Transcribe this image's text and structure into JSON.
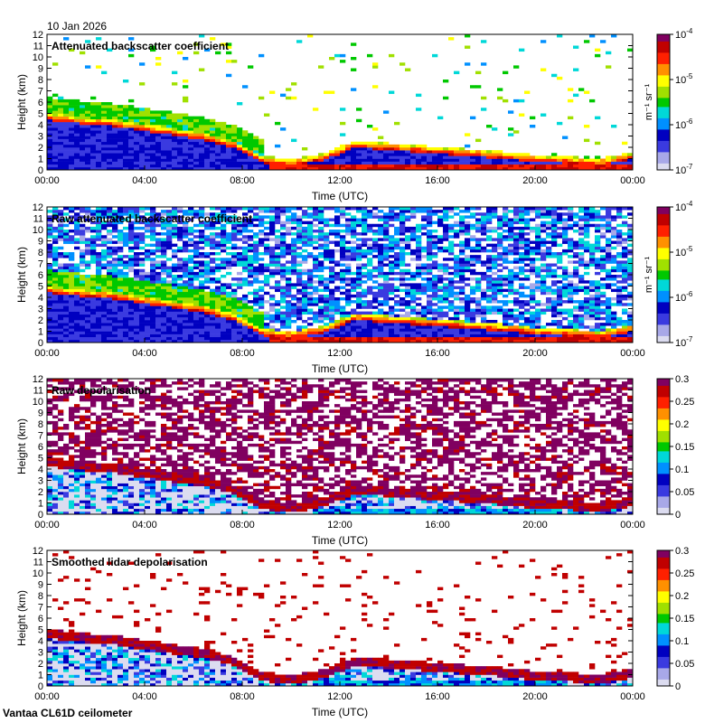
{
  "date_label": "10 Jan 2026",
  "footer_label": "Vantaa CL61D ceilometer",
  "chart_data": [
    {
      "type": "heatmap",
      "title": "Attenuated backscatter coefficient",
      "xlabel": "Time (UTC)",
      "ylabel": "Height (km)",
      "x_ticks": [
        "00:00",
        "04:00",
        "08:00",
        "12:00",
        "16:00",
        "20:00",
        "00:00"
      ],
      "y_ticks": [
        "0",
        "1",
        "2",
        "3",
        "4",
        "5",
        "6",
        "7",
        "8",
        "9",
        "10",
        "11",
        "12"
      ],
      "ylim": [
        0,
        12
      ],
      "colorbar": {
        "scale": "log",
        "range": [
          1e-07,
          0.0001
        ],
        "ticks": [
          {
            "base": "10",
            "exp": "-4"
          },
          {
            "base": "10",
            "exp": "-5"
          },
          {
            "base": "10",
            "exp": "-6"
          },
          {
            "base": "10",
            "exp": "-7"
          }
        ],
        "unit": "m⁻¹ sr⁻¹"
      },
      "features": {
        "cloud_top_km": [
          5.0,
          4.7,
          4.5,
          4.1,
          3.7,
          3.3,
          2.6,
          1.2,
          1.0,
          1.5,
          2.6,
          2.4,
          2.2,
          2.0,
          1.8,
          1.6,
          1.3,
          1.2,
          1.0,
          1.5
        ],
        "noise": "low"
      }
    },
    {
      "type": "heatmap",
      "title": "Raw attenuated backscatter coefficient",
      "xlabel": "Time (UTC)",
      "ylabel": "Height (km)",
      "x_ticks": [
        "00:00",
        "04:00",
        "08:00",
        "12:00",
        "16:00",
        "20:00",
        "00:00"
      ],
      "y_ticks": [
        "0",
        "1",
        "2",
        "3",
        "4",
        "5",
        "6",
        "7",
        "8",
        "9",
        "10",
        "11",
        "12"
      ],
      "ylim": [
        0,
        12
      ],
      "colorbar": {
        "scale": "log",
        "range": [
          1e-07,
          0.0001
        ],
        "ticks": [
          {
            "base": "10",
            "exp": "-4"
          },
          {
            "base": "10",
            "exp": "-5"
          },
          {
            "base": "10",
            "exp": "-6"
          },
          {
            "base": "10",
            "exp": "-7"
          }
        ],
        "unit": "m⁻¹ sr⁻¹"
      },
      "features": {
        "cloud_top_km": [
          5.0,
          4.7,
          4.5,
          4.1,
          3.7,
          3.3,
          2.6,
          1.2,
          1.0,
          1.5,
          2.6,
          2.4,
          2.2,
          2.0,
          1.8,
          1.6,
          1.3,
          1.2,
          1.0,
          1.5
        ],
        "noise": "high"
      }
    },
    {
      "type": "heatmap",
      "title": "Raw depolarisation",
      "xlabel": "Time (UTC)",
      "ylabel": "Height (km)",
      "x_ticks": [
        "00:00",
        "04:00",
        "08:00",
        "12:00",
        "16:00",
        "20:00",
        "00:00"
      ],
      "y_ticks": [
        "0",
        "1",
        "2",
        "3",
        "4",
        "5",
        "6",
        "7",
        "8",
        "9",
        "10",
        "11",
        "12"
      ],
      "ylim": [
        0,
        12
      ],
      "colorbar": {
        "scale": "linear",
        "range": [
          0,
          0.3
        ],
        "ticks": [
          "0.3",
          "0.25",
          "0.2",
          "0.15",
          "0.1",
          "0.05",
          "0"
        ]
      },
      "features": {
        "cloud_top_km": [
          5.0,
          4.7,
          4.5,
          4.1,
          3.7,
          3.3,
          2.6,
          1.2,
          1.0,
          1.5,
          2.6,
          2.4,
          2.2,
          2.0,
          1.8,
          1.6,
          1.3,
          1.2,
          1.0,
          1.5
        ],
        "noise": "speckle"
      }
    },
    {
      "type": "heatmap",
      "title": "Smoothed lidar depolarisation",
      "xlabel": "Time (UTC)",
      "ylabel": "Height (km)",
      "x_ticks": [
        "00:00",
        "04:00",
        "08:00",
        "12:00",
        "16:00",
        "20:00",
        "00:00"
      ],
      "y_ticks": [
        "0",
        "1",
        "2",
        "3",
        "4",
        "5",
        "6",
        "7",
        "8",
        "9",
        "10",
        "11",
        "12"
      ],
      "ylim": [
        0,
        12
      ],
      "colorbar": {
        "scale": "linear",
        "range": [
          0,
          0.3
        ],
        "ticks": [
          "0.3",
          "0.25",
          "0.2",
          "0.15",
          "0.1",
          "0.05",
          "0"
        ]
      },
      "features": {
        "cloud_top_km": [
          5.0,
          4.7,
          4.5,
          4.1,
          3.7,
          3.3,
          2.6,
          1.2,
          1.0,
          1.5,
          2.6,
          2.4,
          2.2,
          2.0,
          1.8,
          1.6,
          1.3,
          1.2,
          1.0,
          1.5
        ],
        "noise": "sparse"
      }
    }
  ],
  "colors": {
    "background": "#ffffff",
    "axis": "#000000",
    "colormap": [
      "#dcdcf0",
      "#a8a8e8",
      "#3a3ae0",
      "#0000c0",
      "#0090ff",
      "#00d8d8",
      "#00c800",
      "#a0e000",
      "#ffff00",
      "#ff9000",
      "#ff2000",
      "#c00000",
      "#800060"
    ]
  }
}
